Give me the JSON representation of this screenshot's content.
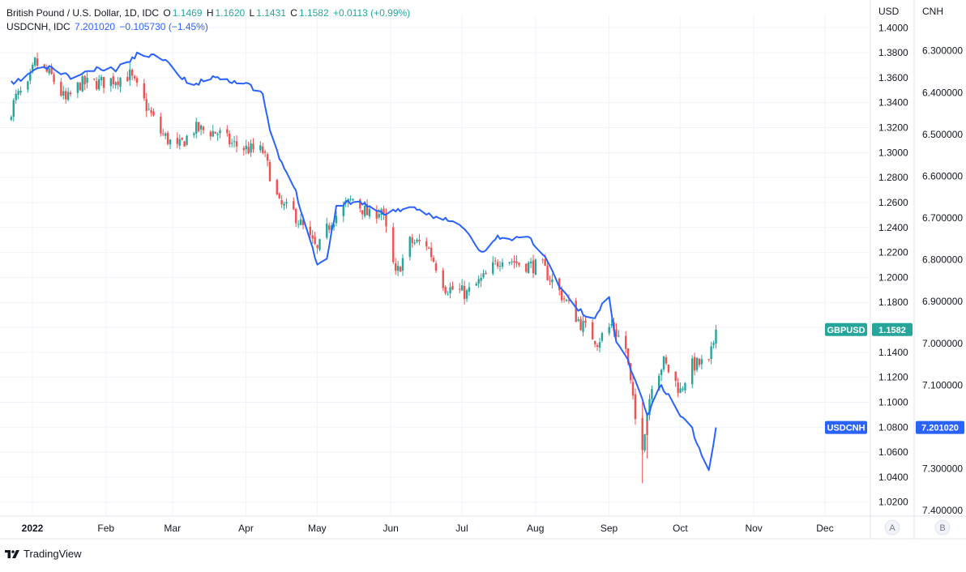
{
  "legend": {
    "main": {
      "title": "British Pound / U.S. Dollar, 1D, IDC",
      "o_label": "O",
      "o_value": "1.1469",
      "h_label": "H",
      "h_value": "1.1620",
      "l_label": "L",
      "l_value": "1.1431",
      "c_label": "C",
      "c_value": "1.1582",
      "change": "+0.0113 (+0.99%)"
    },
    "overlay": {
      "title": "USDCNH, IDC",
      "value": "7.201020",
      "change": "−0.105730 (−1.45%)"
    }
  },
  "axis_headers": {
    "left": "USD",
    "right": "CNH"
  },
  "scale_buttons": {
    "auto": "A",
    "second": "B"
  },
  "brand": "TradingView",
  "colors": {
    "up": "#26a69a",
    "down": "#ef5350",
    "line": "#2962ff",
    "grid": "#f0f3fa"
  },
  "chart_data": {
    "type": "line",
    "x_ticks": [
      "2022",
      "Feb",
      "Mar",
      "Apr",
      "May",
      "Jun",
      "Jul",
      "Aug",
      "Sep",
      "Oct",
      "Nov",
      "Dec"
    ],
    "y_left": {
      "unit": "USD",
      "ticks": [
        "1.4000",
        "1.3800",
        "1.3600",
        "1.3400",
        "1.3200",
        "1.3000",
        "1.2800",
        "1.2600",
        "1.2400",
        "1.2200",
        "1.2000",
        "1.1800",
        "1.1600",
        "1.1400",
        "1.1200",
        "1.1000",
        "1.0800",
        "1.0600",
        "1.0400",
        "1.0200"
      ],
      "range": [
        1.0088,
        1.4099
      ]
    },
    "y_right": {
      "unit": "CNH",
      "ticks": [
        "6.300000",
        "6.400000",
        "6.500000",
        "6.600000",
        "6.700000",
        "6.800000",
        "6.900000",
        "7.000000",
        "7.100000",
        "7.200000",
        "7.300000",
        "7.400000"
      ],
      "range": [
        6.2154,
        7.4131
      ],
      "inverted": true
    },
    "series": [
      {
        "name": "GBPUSD",
        "kind": "candlestick",
        "last_label": "1.1582",
        "anchors": [
          [
            "2022-01-01",
            1.325
          ],
          [
            "2022-01-05",
            1.344
          ],
          [
            "2022-01-10",
            1.352
          ],
          [
            "2022-01-13",
            1.372
          ],
          [
            "2022-01-20",
            1.361
          ],
          [
            "2022-01-26",
            1.341
          ],
          [
            "2022-02-01",
            1.355
          ],
          [
            "2022-02-10",
            1.356
          ],
          [
            "2022-02-22",
            1.362
          ],
          [
            "2022-03-01",
            1.337
          ],
          [
            "2022-03-07",
            1.316
          ],
          [
            "2022-03-14",
            1.303
          ],
          [
            "2022-03-21",
            1.319
          ],
          [
            "2022-03-31",
            1.316
          ],
          [
            "2022-04-06",
            1.307
          ],
          [
            "2022-04-12",
            1.303
          ],
          [
            "2022-04-19",
            1.301
          ],
          [
            "2022-04-22",
            1.283
          ],
          [
            "2022-04-26",
            1.258
          ],
          [
            "2022-05-02",
            1.252
          ],
          [
            "2022-05-12",
            1.221
          ],
          [
            "2022-05-18",
            1.246
          ],
          [
            "2022-05-27",
            1.263
          ],
          [
            "2022-06-03",
            1.249
          ],
          [
            "2022-06-08",
            1.255
          ],
          [
            "2022-06-14",
            1.201
          ],
          [
            "2022-06-20",
            1.228
          ],
          [
            "2022-06-27",
            1.227
          ],
          [
            "2022-07-05",
            1.192
          ],
          [
            "2022-07-14",
            1.187
          ],
          [
            "2022-07-22",
            1.201
          ],
          [
            "2022-07-29",
            1.217
          ],
          [
            "2022-08-05",
            1.211
          ],
          [
            "2022-08-15",
            1.208
          ],
          [
            "2022-08-24",
            1.183
          ],
          [
            "2022-08-31",
            1.163
          ],
          [
            "2022-09-07",
            1.149
          ],
          [
            "2022-09-13",
            1.162
          ],
          [
            "2022-09-19",
            1.143
          ],
          [
            "2022-09-23",
            1.086
          ],
          [
            "2022-09-26",
            1.067
          ],
          [
            "2022-09-30",
            1.116
          ],
          [
            "2022-10-05",
            1.132
          ],
          [
            "2022-10-12",
            1.109
          ],
          [
            "2022-10-16",
            1.129
          ],
          [
            "2022-10-21",
            1.131
          ],
          [
            "2022-10-24",
            1.13
          ],
          [
            "2022-10-27",
            1.158
          ]
        ]
      },
      {
        "name": "USDCNH",
        "kind": "line",
        "last_label": "7.201020",
        "axis": "right",
        "anchors": [
          [
            "2022-01-01",
            6.375
          ],
          [
            "2022-01-04",
            6.38
          ],
          [
            "2022-01-13",
            6.345
          ],
          [
            "2022-01-20",
            6.34
          ],
          [
            "2022-01-28",
            6.365
          ],
          [
            "2022-02-07",
            6.345
          ],
          [
            "2022-02-16",
            6.345
          ],
          [
            "2022-02-25",
            6.31
          ],
          [
            "2022-03-02",
            6.31
          ],
          [
            "2022-03-10",
            6.32
          ],
          [
            "2022-03-15",
            6.365
          ],
          [
            "2022-03-22",
            6.38
          ],
          [
            "2022-03-29",
            6.36
          ],
          [
            "2022-04-05",
            6.37
          ],
          [
            "2022-04-12",
            6.38
          ],
          [
            "2022-04-19",
            6.405
          ],
          [
            "2022-04-22",
            6.49
          ],
          [
            "2022-04-26",
            6.56
          ],
          [
            "2022-05-02",
            6.62
          ],
          [
            "2022-05-12",
            6.81
          ],
          [
            "2022-05-16",
            6.8
          ],
          [
            "2022-05-20",
            6.67
          ],
          [
            "2022-05-27",
            6.66
          ],
          [
            "2022-06-01",
            6.665
          ],
          [
            "2022-06-08",
            6.69
          ],
          [
            "2022-06-15",
            6.68
          ],
          [
            "2022-06-23",
            6.68
          ],
          [
            "2022-06-30",
            6.695
          ],
          [
            "2022-07-06",
            6.705
          ],
          [
            "2022-07-13",
            6.725
          ],
          [
            "2022-07-20",
            6.785
          ],
          [
            "2022-07-27",
            6.745
          ],
          [
            "2022-08-01",
            6.755
          ],
          [
            "2022-08-08",
            6.74
          ],
          [
            "2022-08-15",
            6.785
          ],
          [
            "2022-08-22",
            6.86
          ],
          [
            "2022-08-29",
            6.915
          ],
          [
            "2022-09-05",
            6.945
          ],
          [
            "2022-09-12",
            6.885
          ],
          [
            "2022-09-15",
            7.0
          ],
          [
            "2022-09-20",
            7.04
          ],
          [
            "2022-09-28",
            7.17
          ],
          [
            "2022-10-04",
            7.1
          ],
          [
            "2022-10-12",
            7.17
          ],
          [
            "2022-10-17",
            7.205
          ],
          [
            "2022-10-20",
            7.255
          ],
          [
            "2022-10-24",
            7.305
          ],
          [
            "2022-10-27",
            7.201
          ]
        ]
      }
    ]
  }
}
